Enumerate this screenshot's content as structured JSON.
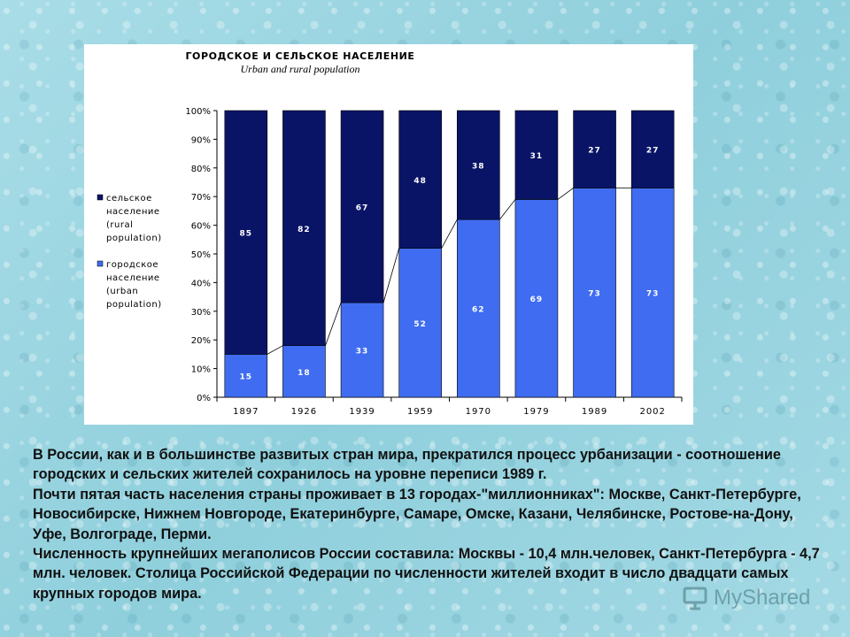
{
  "chart_data": {
    "type": "bar",
    "stacked": true,
    "percent": true,
    "title": "ГОРОДСКОЕ И СЕЛЬСКОЕ НАСЕЛЕНИЕ",
    "subtitle": "Urban and rural population",
    "categories": [
      "1897",
      "1926",
      "1939",
      "1959",
      "1970",
      "1979",
      "1989",
      "2002"
    ],
    "series": [
      {
        "name": "городское население (urban population)",
        "values": [
          15,
          18,
          33,
          52,
          62,
          69,
          73,
          73
        ],
        "color": "#3f6cf0",
        "label_color": "#ffffff"
      },
      {
        "name": "сельское население (rural population)",
        "values": [
          85,
          82,
          67,
          48,
          38,
          31,
          27,
          27
        ],
        "color": "#0a1466",
        "label_color": "#ffffff"
      }
    ],
    "legend": [
      {
        "lines": [
          "сельское",
          "население",
          "(rural",
          "population)"
        ],
        "color": "#0a1466"
      },
      {
        "lines": [
          "городское",
          "население",
          "(urban",
          "population)"
        ],
        "color": "#3f6cf0"
      }
    ],
    "legend_placement": "left",
    "yticks": [
      "0%",
      "10%",
      "20%",
      "30%",
      "40%",
      "50%",
      "60%",
      "70%",
      "80%",
      "90%",
      "100%"
    ],
    "ylim": [
      0,
      100
    ],
    "grid": false,
    "connector_lines": true
  },
  "text": {
    "paragraphs": [
      "В России, как и в большинстве развитых стран мира, прекратился процесс урбанизации - соотношение городских и сельских жителей сохранилось на уровне переписи 1989 г.",
      "Почти пятая часть населения страны проживает в 13 городах-\"миллионниках\": Москве, Санкт-Петербурге, Новосибирске, Нижнем Новгороде, Екатеринбурге, Самаре, Омске, Казани, Челябинске, Ростове-на-Дону, Уфе, Волгограде, Перми.",
      "Численность крупнейших мегаполисов России составила: Москвы - 10,4 млн.человек, Санкт-Петербурга - 4,7 млн. человек. Столица Российской Федерации по численности жителей входит в число двадцати самых крупных городов мира."
    ]
  },
  "watermark": {
    "text": "MyShared",
    "icon": "presentation-board-icon"
  }
}
